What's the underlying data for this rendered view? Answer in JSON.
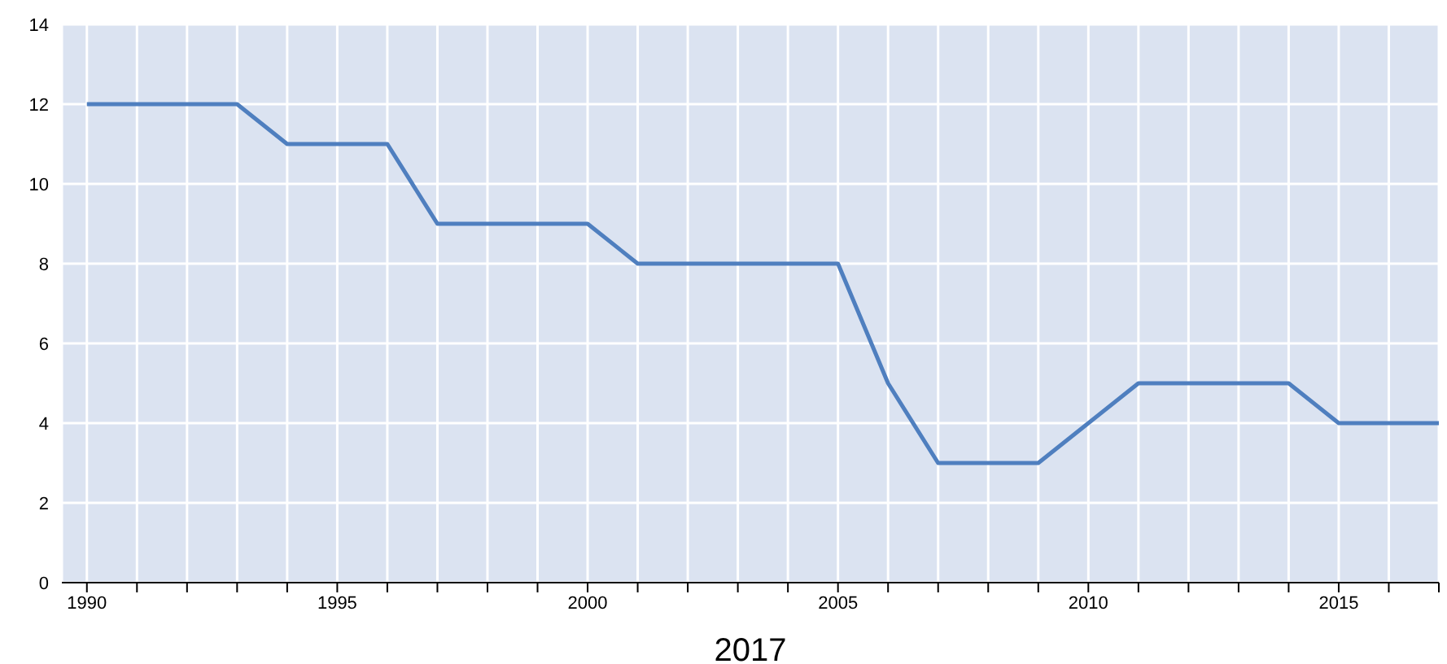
{
  "chart_data": {
    "type": "line",
    "xlabel": "2017",
    "x": [
      1990,
      1991,
      1992,
      1993,
      1994,
      1995,
      1996,
      1997,
      1998,
      1999,
      2000,
      2001,
      2002,
      2003,
      2004,
      2005,
      2006,
      2007,
      2008,
      2009,
      2010,
      2011,
      2012,
      2013,
      2014,
      2015,
      2016,
      2017
    ],
    "series": [
      {
        "color": "#4f7fbf",
        "values": [
          12,
          12,
          12,
          12,
          11,
          11,
          11,
          9,
          9,
          9,
          9,
          8,
          8,
          8,
          8,
          8,
          5,
          3,
          3,
          3,
          4,
          5,
          5,
          5,
          5,
          4,
          4,
          4
        ]
      }
    ],
    "xlim": [
      1989.5,
      2017
    ],
    "xticks": [
      1990,
      {
        "value": 1991,
        "label": null
      },
      {
        "value": 1992,
        "label": null
      },
      {
        "value": 1993,
        "label": null
      },
      {
        "value": 1994,
        "label": null
      },
      1995,
      {
        "value": 1996,
        "label": null
      },
      {
        "value": 1997,
        "label": null
      },
      {
        "value": 1998,
        "label": null
      },
      {
        "value": 1999,
        "label": null
      },
      2000,
      {
        "value": 2001,
        "label": null
      },
      {
        "value": 2002,
        "label": null
      },
      {
        "value": 2003,
        "label": null
      },
      {
        "value": 2004,
        "label": null
      },
      2005,
      {
        "value": 2006,
        "label": null
      },
      {
        "value": 2007,
        "label": null
      },
      {
        "value": 2008,
        "label": null
      },
      {
        "value": 2009,
        "label": null
      },
      2010,
      {
        "value": 2011,
        "label": null
      },
      {
        "value": 2012,
        "label": null
      },
      {
        "value": 2013,
        "label": null
      },
      {
        "value": 2014,
        "label": null
      },
      2015,
      {
        "value": 2016,
        "label": null
      },
      {
        "value": 2017,
        "label": null
      }
    ],
    "ylim": [
      0,
      14
    ],
    "yticks": [
      0,
      2,
      4,
      6,
      8,
      10,
      12,
      14
    ],
    "grid": true,
    "marker": "none",
    "line_style": "solid",
    "legend": false
  }
}
